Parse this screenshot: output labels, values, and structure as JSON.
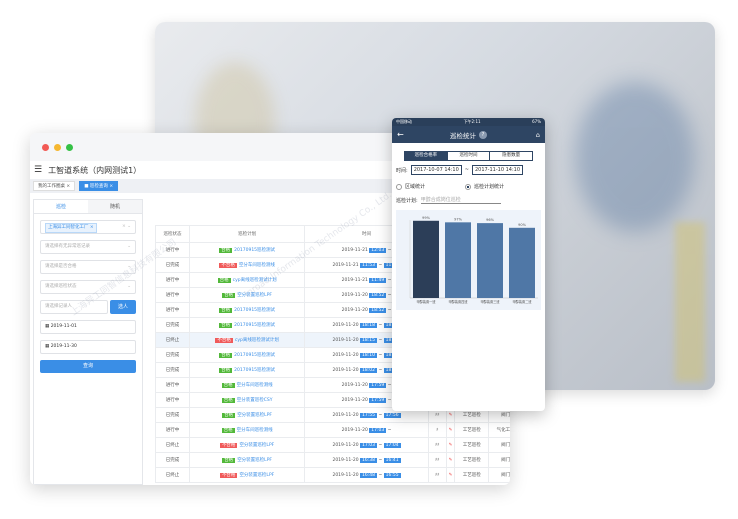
{
  "window": {
    "app_title": "工智道系统（内网测试1）",
    "tabs": [
      {
        "label": "我的工作圈桌",
        "active": false
      },
      {
        "label": "巡检查询",
        "active": true
      }
    ],
    "filter": {
      "tabs": [
        "巡检",
        "随机"
      ],
      "factory_tag": "上海异工同智化工厂",
      "abnormal_placeholder": "请选择有无异常巡记录",
      "qualified_placeholder": "请选择是否合格",
      "status_placeholder": "请选择巡检状态",
      "recorder_placeholder": "请选择记录人",
      "select_person_label": "选人",
      "start_date": "2019-11-01",
      "end_date": "2019-11-30",
      "query_label": "查询"
    },
    "table": {
      "headers": [
        "巡检状态",
        "巡检计划",
        "时间",
        "填写",
        "",
        "",
        "",
        ""
      ],
      "rows": [
        {
          "status": "进行中",
          "result": "合格",
          "ok": true,
          "plan": "20170915巡检测试",
          "date": "2019-11-21",
          "start": "12:03",
          "end": "",
          "fill": "♯",
          "type": "工艺巡检",
          "area": "阀门"
        },
        {
          "status": "已完成",
          "result": "不合格",
          "ok": false,
          "plan": "空分车间巡检测线",
          "date": "2019-11-21",
          "start": "11:53",
          "end": "11:58",
          "fill": "♯",
          "type": "工艺巡检",
          "area": "阀门"
        },
        {
          "status": "进行中",
          "result": "合格",
          "ok": true,
          "plan": "cyp离线巡检测试计划",
          "date": "2019-11-21",
          "start": "11:49",
          "end": "",
          "fill": "♯",
          "type": "工艺巡检",
          "area": "阀门"
        },
        {
          "status": "进行中",
          "result": "合格",
          "ok": true,
          "plan": "空分装置巡检LPF",
          "date": "2019-11-20",
          "start": "18:52",
          "end": "",
          "fill": "♯",
          "type": "工艺巡检",
          "area": "阀门"
        },
        {
          "status": "进行中",
          "result": "合格",
          "ok": true,
          "plan": "20170915巡检测试",
          "date": "2019-11-20",
          "start": "18:52",
          "end": "",
          "fill": "♯",
          "type": "工艺巡检",
          "area": "阀门"
        },
        {
          "status": "已完成",
          "result": "合格",
          "ok": true,
          "plan": "20170915巡检测试",
          "date": "2019-11-20",
          "start": "18:18",
          "end": "18:39",
          "fill": "♯♯",
          "type": "工艺巡检",
          "area": "阀门"
        },
        {
          "status": "已终止",
          "result": "不合格",
          "ok": false,
          "plan": "cyp离线巡检测试计划",
          "date": "2019-11-20",
          "start": "18:15",
          "end": "18:17",
          "fill": "♯",
          "type": "工艺巡检",
          "area": "阀门",
          "highlight": true
        },
        {
          "status": "已完成",
          "result": "合格",
          "ok": true,
          "plan": "20170915巡检测试",
          "date": "2019-11-20",
          "start": "18:10",
          "end": "18:31",
          "fill": "♯♯",
          "type": "工艺巡检",
          "area": "阀门"
        },
        {
          "status": "已完成",
          "result": "合格",
          "ok": true,
          "plan": "20170915巡检测试",
          "date": "2019-11-20",
          "start": "18:02",
          "end": "18:04",
          "fill": "♯♯",
          "type": "工艺巡检",
          "area": "阀门"
        },
        {
          "status": "进行中",
          "result": "合格",
          "ok": true,
          "plan": "空分车间巡检测线",
          "date": "2019-11-20",
          "start": "17:59",
          "end": "",
          "fill": "♯",
          "type": "工艺巡检",
          "area": "阀门"
        },
        {
          "status": "进行中",
          "result": "合格",
          "ok": true,
          "plan": "空分装置巡检CSY",
          "date": "2019-11-20",
          "start": "17:59",
          "end": "",
          "fill": "♯",
          "type": "工艺巡检",
          "area": "阀门"
        },
        {
          "status": "已完成",
          "result": "合格",
          "ok": true,
          "plan": "空分装置巡检LPF",
          "date": "2019-11-20",
          "start": "17:55",
          "end": "17:56",
          "fill": "♯♯",
          "type": "工艺巡检",
          "area": "阀门"
        },
        {
          "status": "进行中",
          "result": "合格",
          "ok": true,
          "plan": "空分车间巡检测线",
          "date": "2019-11-20",
          "start": "17:03",
          "end": "",
          "fill": "♯",
          "type": "工艺巡检",
          "area": "气化工段"
        },
        {
          "status": "已终止",
          "result": "不合格",
          "ok": false,
          "plan": "空分装置巡检LPF",
          "date": "2019-11-20",
          "start": "17:03",
          "end": "17:04",
          "fill": "♯♯",
          "type": "工艺巡检",
          "area": "阀门"
        },
        {
          "status": "已完成",
          "result": "合格",
          "ok": true,
          "plan": "空分装置巡检LPF",
          "date": "2019-11-20",
          "start": "16:38",
          "end": "16:41",
          "fill": "♯♯",
          "type": "工艺巡检",
          "area": "阀门"
        },
        {
          "status": "已终止",
          "result": "不合格",
          "ok": false,
          "plan": "空分装置巡检LPF",
          "date": "2019-11-20",
          "start": "16:48",
          "end": "16:55",
          "fill": "♯♯",
          "type": "工艺巡检",
          "area": "阀门"
        }
      ]
    }
  },
  "phone": {
    "carrier": "中国移动",
    "clock": "下午2:11",
    "battery": "67%",
    "title": "巡检统计",
    "segments": [
      {
        "label": "巡检合格率",
        "active": true
      },
      {
        "label": "巡检时间",
        "active": false
      },
      {
        "label": "隐患数量",
        "active": false
      }
    ],
    "time_label": "时间:",
    "start": "2017-10-07 14:10",
    "end": "2017-11-10 14:10",
    "radio_area": "区域统计",
    "radio_plan": "巡检计划统计",
    "plan_label": "巡检计划:",
    "plan_value": "甲醇合成岗位巡检"
  },
  "chart_data": {
    "type": "bar",
    "categories": [
      "甲醇装置一班",
      "甲醇装置四班",
      "甲醇装置三班",
      "甲醇装置二班"
    ],
    "values": [
      99,
      97,
      96,
      90
    ],
    "data_labels": [
      "99%",
      "97%",
      "96%",
      "90%"
    ],
    "ylim": [
      0,
      100
    ],
    "colors": [
      "#2c3e58",
      "#4f77a6",
      "#4f77a6",
      "#4f77a6"
    ]
  },
  "watermark": "上海异工同智信息科技有限公司 Shanghai Inroad Information Technology Co., Ltd."
}
